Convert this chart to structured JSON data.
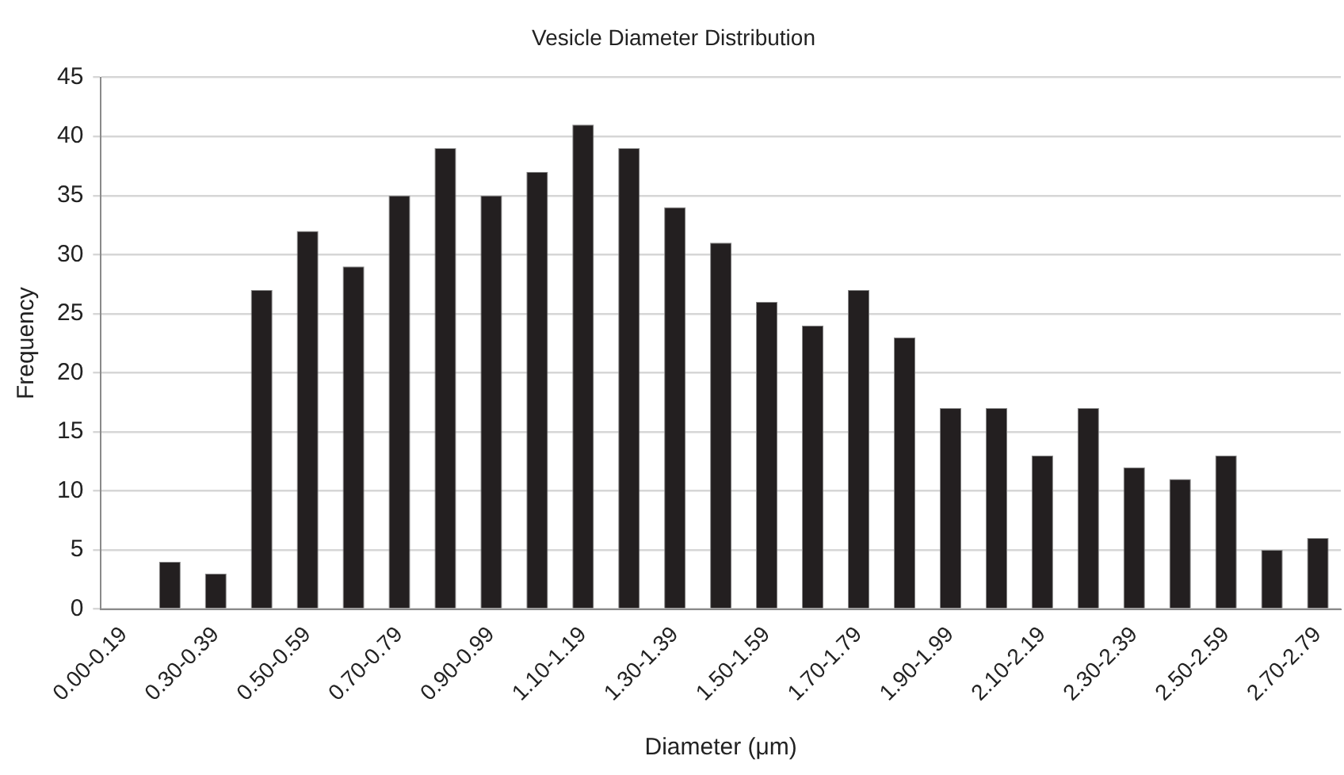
{
  "chart_data": {
    "type": "bar",
    "title": "Vesicle Diameter Distribution",
    "xlabel": "Diameter (μm)",
    "ylabel": "Frequency",
    "categories": [
      "0.00-0.19",
      null,
      "0.30-0.39",
      null,
      "0.50-0.59",
      null,
      "0.70-0.79",
      null,
      "0.90-0.99",
      null,
      "1.10-1.19",
      null,
      "1.30-1.39",
      null,
      "1.50-1.59",
      null,
      "1.70-1.79",
      null,
      "1.90-1.99",
      null,
      "2.10-2.19",
      null,
      "2.30-2.39",
      null,
      "2.50-2.59",
      null,
      "2.70-2.79"
    ],
    "values": [
      0,
      4,
      3,
      27,
      32,
      29,
      35,
      39,
      35,
      37,
      41,
      39,
      34,
      31,
      26,
      24,
      27,
      23,
      17,
      17,
      13,
      17,
      12,
      11,
      13,
      5,
      6
    ],
    "color": "#231f20",
    "ylim": [
      0,
      45
    ],
    "yticks": [
      0,
      5,
      10,
      15,
      20,
      25,
      30,
      35,
      40,
      45
    ],
    "grid": "y",
    "legend": false
  }
}
